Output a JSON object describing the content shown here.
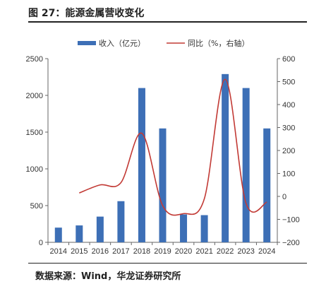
{
  "header": {
    "title": "图 27：能源金属营收变化"
  },
  "footer": {
    "source": "数据来源：Wind，华龙证券研究所"
  },
  "chart_data": {
    "type": "bar",
    "categories": [
      "2014",
      "2015",
      "2016",
      "2017",
      "2018",
      "2019",
      "2020",
      "2021",
      "2022",
      "2023",
      "2024"
    ],
    "series": [
      {
        "name": "收入（亿元）",
        "type": "bar",
        "axis": "left",
        "values": [
          200,
          230,
          350,
          560,
          2100,
          1550,
          380,
          370,
          2290,
          2100,
          1550
        ]
      },
      {
        "name": "同比（%，右轴）",
        "type": "line",
        "axis": "right",
        "values": [
          null,
          15,
          50,
          60,
          275,
          -40,
          -75,
          -10,
          510,
          -30,
          -25
        ]
      }
    ],
    "y_left": {
      "min": 0,
      "max": 2500,
      "ticks": [
        0,
        500,
        1000,
        1500,
        2000,
        2500
      ]
    },
    "y_right": {
      "min": -200,
      "max": 600,
      "ticks": [
        -200,
        -100,
        0,
        100,
        200,
        300,
        400,
        500,
        600
      ]
    },
    "legend_position": "top",
    "colors": {
      "bar": "#3d6fb6",
      "line": "#c23a35"
    },
    "grid": false
  }
}
